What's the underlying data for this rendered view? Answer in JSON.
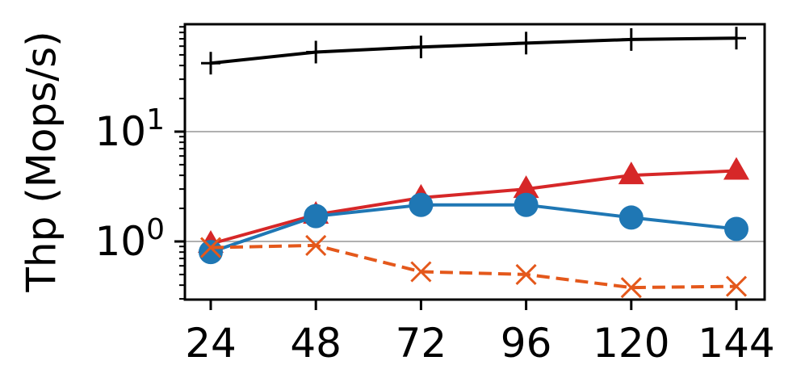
{
  "chart_data": {
    "type": "line",
    "xlabel": "",
    "ylabel": "Thp (Mops/s)",
    "yscale": "log",
    "ylim": [
      0.3,
      90
    ],
    "grid": "y-major",
    "x": [
      24,
      48,
      72,
      96,
      120,
      144
    ],
    "x_tick_labels": [
      "24",
      "48",
      "72",
      "96",
      "120",
      "144"
    ],
    "y_major_ticks": [
      {
        "value": 1,
        "base": "10",
        "exp": "0"
      },
      {
        "value": 10,
        "base": "10",
        "exp": "1"
      }
    ],
    "y_minor_ticks": [
      0.3,
      0.4,
      0.5,
      0.6,
      0.7,
      0.8,
      0.9,
      2,
      3,
      4,
      5,
      6,
      7,
      8,
      9,
      20,
      30,
      40,
      50,
      60,
      70,
      80,
      90
    ],
    "series": [
      {
        "color": "#000000",
        "marker": "plus",
        "dash": false,
        "values": [
          42,
          53,
          59,
          64,
          69,
          71
        ]
      },
      {
        "color": "#d62728",
        "marker": "triangle",
        "dash": false,
        "values": [
          0.95,
          1.75,
          2.5,
          3.0,
          4.0,
          4.4
        ]
      },
      {
        "color": "#1f77b4",
        "marker": "circle",
        "dash": false,
        "values": [
          0.8,
          1.7,
          2.15,
          2.15,
          1.65,
          1.3
        ]
      },
      {
        "color": "#e4581b",
        "marker": "x",
        "dash": true,
        "values": [
          0.88,
          0.92,
          0.53,
          0.5,
          0.38,
          0.39
        ]
      }
    ]
  }
}
